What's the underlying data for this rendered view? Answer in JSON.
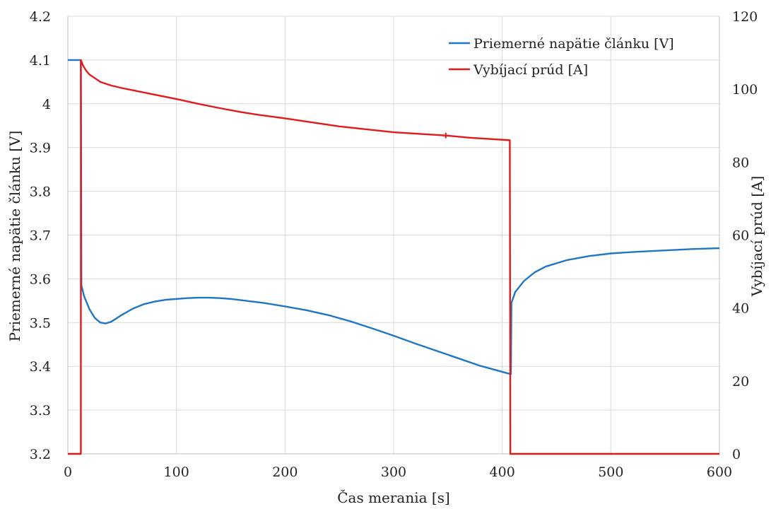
{
  "chart_data": {
    "type": "line",
    "title": "",
    "xlabel": "Čas merania [s]",
    "ylabel_left": "Priemerné napätie článku [V]",
    "ylabel_right": "Vybíjací prúd [A]",
    "xlim": [
      0,
      600
    ],
    "ylim_left": [
      3.2,
      4.2
    ],
    "ylim_right": [
      0,
      120
    ],
    "x_ticks": [
      0,
      100,
      200,
      300,
      400,
      500,
      600
    ],
    "y_left_ticks": [
      3.2,
      3.3,
      3.4,
      3.5,
      3.6,
      3.7,
      3.8,
      3.9,
      4.0,
      4.1,
      4.2
    ],
    "y_left_tick_labels": [
      "3.2",
      "3.3",
      "3.4",
      "3.5",
      "3.6",
      "3.7",
      "3.8",
      "3.9",
      "4",
      "4.1",
      "4.2"
    ],
    "y_right_ticks": [
      0,
      20,
      40,
      60,
      80,
      100,
      120
    ],
    "y_right_tick_labels": [
      "0",
      "20",
      "40",
      "60",
      "80",
      "100",
      "120"
    ],
    "grid": true,
    "legend_position": "top-right",
    "series": [
      {
        "name": "Priemerné napätie článku [V]",
        "axis": "left",
        "color": "#1f77c4",
        "points": [
          [
            0,
            4.1
          ],
          [
            12,
            4.1
          ],
          [
            12.5,
            3.585
          ],
          [
            15,
            3.56
          ],
          [
            20,
            3.53
          ],
          [
            25,
            3.51
          ],
          [
            30,
            3.5
          ],
          [
            35,
            3.498
          ],
          [
            40,
            3.502
          ],
          [
            50,
            3.518
          ],
          [
            60,
            3.532
          ],
          [
            70,
            3.542
          ],
          [
            80,
            3.548
          ],
          [
            90,
            3.552
          ],
          [
            100,
            3.554
          ],
          [
            110,
            3.556
          ],
          [
            120,
            3.557
          ],
          [
            130,
            3.557
          ],
          [
            140,
            3.556
          ],
          [
            150,
            3.554
          ],
          [
            160,
            3.551
          ],
          [
            180,
            3.545
          ],
          [
            200,
            3.537
          ],
          [
            220,
            3.528
          ],
          [
            240,
            3.517
          ],
          [
            260,
            3.503
          ],
          [
            280,
            3.487
          ],
          [
            300,
            3.47
          ],
          [
            320,
            3.452
          ],
          [
            340,
            3.435
          ],
          [
            360,
            3.418
          ],
          [
            380,
            3.401
          ],
          [
            408,
            3.382
          ],
          [
            408.5,
            3.545
          ],
          [
            412,
            3.57
          ],
          [
            420,
            3.595
          ],
          [
            430,
            3.615
          ],
          [
            440,
            3.628
          ],
          [
            460,
            3.643
          ],
          [
            480,
            3.652
          ],
          [
            500,
            3.658
          ],
          [
            525,
            3.662
          ],
          [
            550,
            3.665
          ],
          [
            575,
            3.668
          ],
          [
            600,
            3.67
          ]
        ]
      },
      {
        "name": "Vybíjací prúd [A]",
        "axis": "right",
        "color": "#e31a1c",
        "points": [
          [
            0,
            0
          ],
          [
            12,
            0
          ],
          [
            12,
            108
          ],
          [
            14,
            106.5
          ],
          [
            17,
            105
          ],
          [
            20,
            104
          ],
          [
            25,
            103
          ],
          [
            30,
            102
          ],
          [
            40,
            101
          ],
          [
            50,
            100.3
          ],
          [
            60,
            99.7
          ],
          [
            80,
            98.5
          ],
          [
            100,
            97.3
          ],
          [
            120,
            96.0
          ],
          [
            140,
            94.8
          ],
          [
            160,
            93.7
          ],
          [
            175,
            93.0
          ],
          [
            200,
            92.0
          ],
          [
            250,
            89.8
          ],
          [
            300,
            88.2
          ],
          [
            348,
            87.3
          ],
          [
            370,
            86.7
          ],
          [
            407,
            86.0
          ],
          [
            407.5,
            0
          ],
          [
            600,
            0
          ]
        ]
      }
    ],
    "annotations": [
      {
        "series": "Vybíjací prúd [A]",
        "marker": "plus",
        "x": 348,
        "y": 87.3
      }
    ]
  }
}
